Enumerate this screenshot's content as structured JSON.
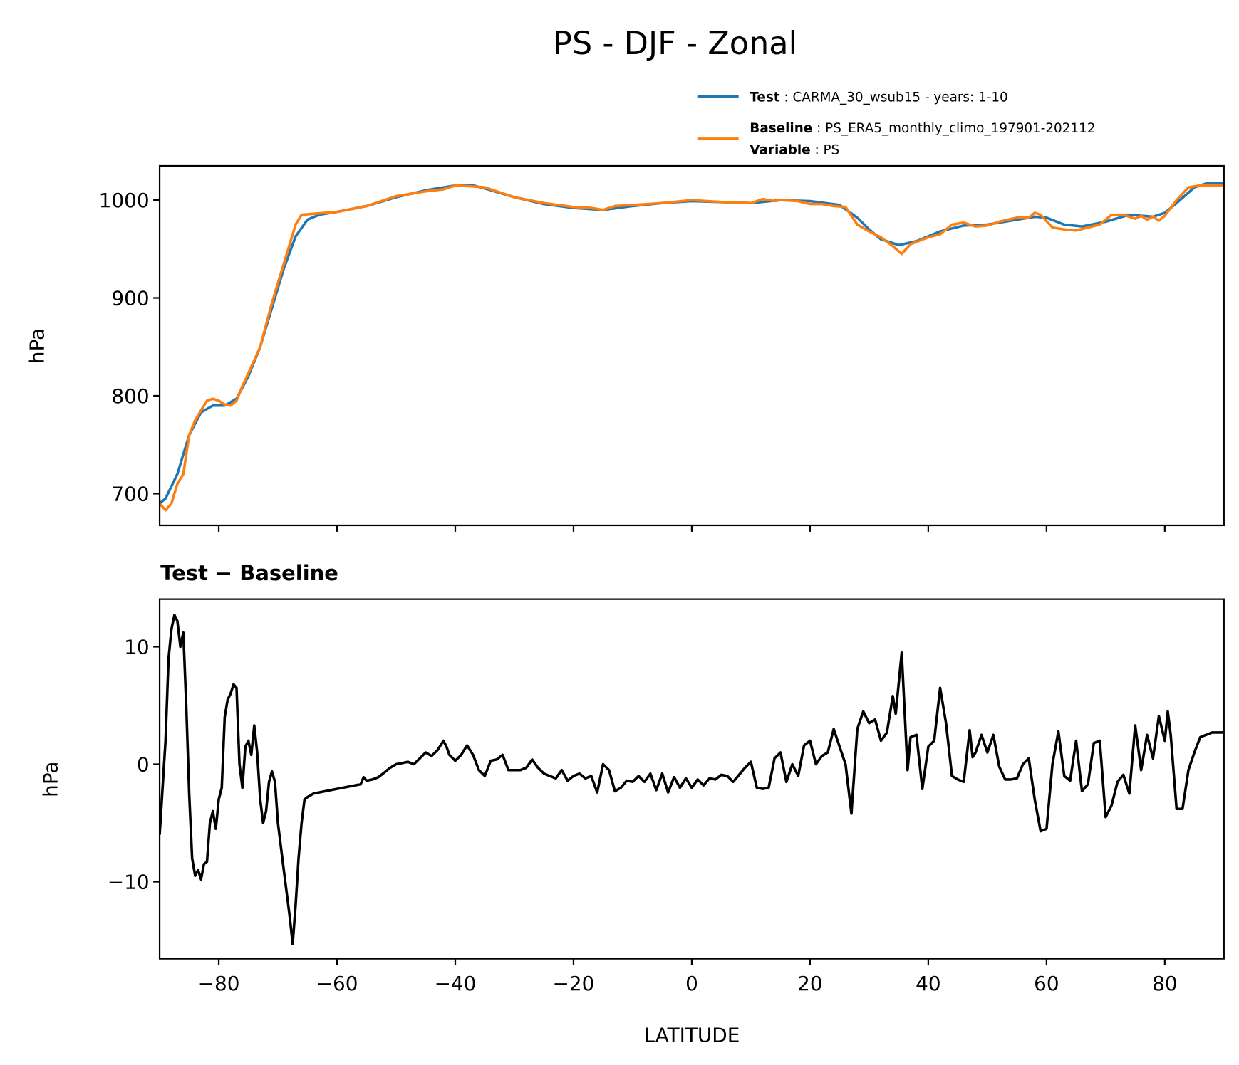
{
  "chart_data": [
    {
      "type": "line",
      "title": "PS - DJF - Zonal",
      "xlabel": "",
      "ylabel": "hPa",
      "xlim": [
        -90,
        90
      ],
      "ylim": [
        667.6,
        1035
      ],
      "yticks": [
        700,
        800,
        900,
        1000
      ],
      "ytick_labels": [
        "700",
        "800",
        "900",
        "1000"
      ],
      "xticks": [
        -80,
        -60,
        -40,
        -20,
        0,
        20,
        40,
        60,
        80
      ],
      "legend": {
        "placement": "top-right, above axes",
        "entries": [
          {
            "key": "Test",
            "sep": " : ",
            "value": "CARMA_30_wsub15 - years: 1-10",
            "color": "#1f77b4"
          },
          {
            "key": "Baseline",
            "sep": " : ",
            "value": "PS_ERA5_monthly_climo_197901-202112",
            "color": "#ff7f0e"
          },
          {
            "key": "Variable",
            "sep": " : ",
            "value": "PS"
          }
        ]
      },
      "series": [
        {
          "name": "Test",
          "color": "#1f77b4",
          "x": [
            -90,
            -89,
            -87,
            -85,
            -83,
            -81,
            -79,
            -77,
            -75,
            -73,
            -71,
            -69,
            -67,
            -65,
            -63,
            -60,
            -55,
            -50,
            -45,
            -40,
            -37,
            -35,
            -30,
            -25,
            -20,
            -15,
            -10,
            -5,
            0,
            5,
            10,
            15,
            20,
            25,
            28,
            30,
            32,
            35,
            38,
            42,
            46,
            50,
            55,
            58,
            60,
            63,
            66,
            70,
            74,
            78,
            80,
            82,
            85,
            87,
            90
          ],
          "y": [
            690,
            695,
            720,
            760,
            783,
            790,
            790,
            797,
            820,
            850,
            890,
            930,
            963,
            980,
            985,
            988,
            994,
            1003,
            1010,
            1015,
            1015,
            1012,
            1003,
            996,
            992,
            990,
            994,
            997,
            999,
            998,
            997,
            1000,
            999,
            995,
            982,
            970,
            960,
            954,
            958,
            968,
            974,
            975,
            980,
            983,
            982,
            975,
            973,
            978,
            985,
            983,
            987,
            997,
            1013,
            1017,
            1017
          ]
        },
        {
          "name": "Baseline",
          "color": "#ff7f0e",
          "x": [
            -90,
            -89,
            -88,
            -87,
            -86,
            -85,
            -84,
            -83,
            -82,
            -81,
            -80,
            -79,
            -78,
            -77,
            -76,
            -75,
            -73,
            -71,
            -69,
            -67,
            -66,
            -64,
            -60,
            -55,
            -50,
            -45,
            -42,
            -40,
            -37,
            -35,
            -30,
            -25,
            -20,
            -17,
            -15,
            -13,
            -10,
            -5,
            0,
            5,
            10,
            12,
            14,
            15,
            18,
            20,
            22,
            24,
            26,
            28,
            30,
            32,
            34,
            35.5,
            37,
            40,
            42,
            44,
            46,
            48,
            50,
            52,
            55,
            57,
            58,
            59,
            61,
            63,
            65,
            67,
            69,
            71,
            73,
            74,
            75,
            76,
            77,
            78,
            79,
            80,
            82,
            84,
            86,
            90
          ],
          "y": [
            690,
            683,
            690,
            710,
            720,
            760,
            775,
            785,
            795,
            797,
            795,
            791,
            790,
            795,
            810,
            823,
            850,
            895,
            935,
            975,
            985,
            986,
            988,
            994,
            1004,
            1009,
            1011,
            1015,
            1014,
            1013,
            1003,
            997,
            993,
            992,
            990,
            994,
            995,
            997,
            1000,
            998,
            997,
            1001,
            999,
            1000,
            999,
            996,
            996,
            994,
            993,
            975,
            968,
            962,
            953,
            945,
            955,
            962,
            965,
            975,
            977,
            973,
            974,
            978,
            982,
            982,
            987,
            985,
            972,
            970,
            969,
            972,
            975,
            985,
            985,
            983,
            981,
            984,
            980,
            983,
            979,
            984,
            1000,
            1013,
            1015,
            1015
          ]
        }
      ]
    },
    {
      "type": "line",
      "title": "Test − Baseline",
      "xlabel": "LATITUDE",
      "ylabel": "hPa",
      "xlim": [
        -90,
        90
      ],
      "ylim": [
        -16.55,
        14.05
      ],
      "yticks": [
        -10,
        0,
        10
      ],
      "ytick_labels": [
        "−10",
        "0",
        "10"
      ],
      "xticks": [
        -80,
        -60,
        -40,
        -20,
        0,
        20,
        40,
        60,
        80
      ],
      "xtick_labels": [
        "−80",
        "−60",
        "−40",
        "−20",
        "0",
        "20",
        "40",
        "60",
        "80"
      ],
      "series": [
        {
          "name": "Test − Baseline",
          "color": "#000000",
          "x": [
            -90,
            -89,
            -88.5,
            -88,
            -87.5,
            -87,
            -86.5,
            -86,
            -85.5,
            -85,
            -84.5,
            -84,
            -83.5,
            -83,
            -82.5,
            -82,
            -81.5,
            -81,
            -80.5,
            -80,
            -79.5,
            -79,
            -78.5,
            -78,
            -77.5,
            -77,
            -76.5,
            -76,
            -75.5,
            -75,
            -74.5,
            -74,
            -73.5,
            -73,
            -72.5,
            -72,
            -71.5,
            -71,
            -70.5,
            -70,
            -69,
            -68,
            -67.5,
            -67,
            -66.5,
            -66,
            -65.5,
            -65,
            -64,
            -62,
            -60,
            -58,
            -56,
            -55.5,
            -55,
            -54,
            -53,
            -52,
            -51,
            -50,
            -49,
            -48,
            -47,
            -46,
            -45,
            -44,
            -43,
            -42,
            -41.5,
            -41,
            -40,
            -39,
            -38,
            -37,
            -36,
            -35,
            -34,
            -33,
            -32,
            -31,
            -30,
            -29,
            -28,
            -27,
            -26,
            -25,
            -24,
            -23,
            -22,
            -21,
            -20,
            -19,
            -18,
            -17,
            -16,
            -15,
            -14,
            -13,
            -12,
            -11,
            -10,
            -9,
            -8,
            -7,
            -6,
            -5,
            -4,
            -3,
            -2,
            -1,
            0,
            1,
            2,
            3,
            4,
            5,
            6,
            7,
            8,
            9,
            10,
            11,
            12,
            13,
            14,
            15,
            16,
            17,
            18,
            19,
            20,
            21,
            22,
            23,
            24,
            25,
            26,
            27,
            28,
            29,
            30,
            31,
            32,
            33,
            34,
            34.5,
            35.5,
            36.5,
            37,
            38,
            39,
            40,
            41,
            42,
            43,
            44,
            45,
            46,
            47,
            47.5,
            48,
            49,
            50,
            51,
            52,
            53,
            54,
            55,
            56,
            57,
            58,
            59,
            60,
            61,
            62,
            63,
            64,
            65,
            66,
            67,
            68,
            69,
            70,
            71,
            72,
            73,
            74,
            75,
            76,
            77,
            78,
            79,
            80,
            80.5,
            81,
            82,
            83,
            84,
            85,
            86,
            88,
            90
          ],
          "y": [
            -6,
            2,
            9,
            11.5,
            12.7,
            12.2,
            10,
            11.2,
            5,
            -2.5,
            -8,
            -9.5,
            -9,
            -9.8,
            -8.5,
            -8.3,
            -5,
            -4,
            -5.5,
            -3,
            -2,
            4,
            5.5,
            6,
            6.8,
            6.5,
            0,
            -2,
            1.5,
            2,
            0.8,
            3.3,
            1,
            -3,
            -5,
            -4,
            -1.5,
            -0.6,
            -1.5,
            -5,
            -9,
            -13,
            -15.3,
            -12,
            -8,
            -5,
            -3,
            -2.8,
            -2.5,
            -2.3,
            -2.1,
            -1.9,
            -1.7,
            -1.1,
            -1.4,
            -1.3,
            -1.1,
            -0.7,
            -0.3,
            0,
            0.1,
            0.2,
            0,
            0.5,
            1,
            0.7,
            1.2,
            2,
            1.5,
            0.8,
            0.3,
            0.8,
            1.6,
            0.8,
            -0.5,
            -1,
            0.3,
            0.4,
            0.8,
            -0.5,
            -0.5,
            -0.5,
            -0.3,
            0.4,
            -0.3,
            -0.8,
            -1,
            -1.2,
            -0.5,
            -1.4,
            -1,
            -0.8,
            -1.2,
            -1,
            -2.4,
            0,
            -0.5,
            -2.3,
            -2,
            -1.4,
            -1.5,
            -1,
            -1.5,
            -0.8,
            -2.2,
            -0.8,
            -2.4,
            -1.1,
            -2,
            -1.2,
            -2,
            -1.3,
            -1.8,
            -1.2,
            -1.3,
            -0.9,
            -1,
            -1.5,
            -0.9,
            -0.3,
            0.2,
            -2,
            -2.1,
            -2,
            0.5,
            1,
            -1.5,
            0,
            -1,
            1.6,
            2,
            0,
            0.7,
            1,
            3,
            1.5,
            0,
            -4.2,
            3,
            4.5,
            3.5,
            3.8,
            2,
            2.7,
            5.8,
            4.3,
            9.5,
            -0.5,
            2.3,
            2.5,
            -2.1,
            1.5,
            2,
            6.5,
            3.5,
            -1,
            -1.3,
            -1.5,
            2.9,
            0.6,
            1,
            2.5,
            1,
            2.5,
            -0.2,
            -1.3,
            -1.3,
            -1.2,
            0,
            0.5,
            -3,
            -5.7,
            -5.5,
            0,
            2.8,
            -1,
            -1.4,
            2,
            -2.3,
            -1.7,
            1.8,
            2,
            -4.5,
            -3.5,
            -1.5,
            -0.9,
            -2.5,
            3.3,
            -0.5,
            2.5,
            0.5,
            4.1,
            2,
            4.5,
            2.5,
            -3.8,
            -3.8,
            -0.5,
            1,
            2.3,
            2.7,
            2.7
          ]
        }
      ]
    }
  ]
}
